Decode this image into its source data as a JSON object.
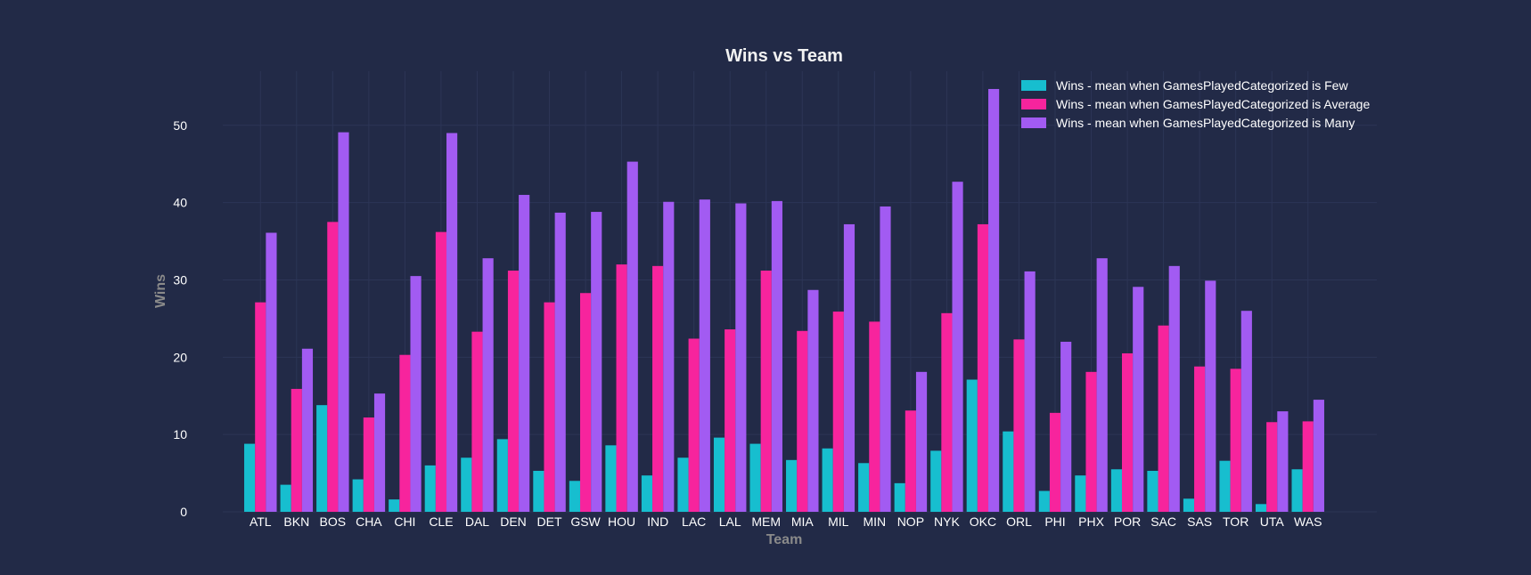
{
  "chart_data": {
    "type": "bar",
    "title": "Wins vs Team",
    "xlabel": "Team",
    "ylabel": "Wins",
    "ylim": [
      0,
      57
    ],
    "yticks": [
      0,
      10,
      20,
      30,
      40,
      50
    ],
    "grid": true,
    "legend_position": "top-right",
    "categories": [
      "ATL",
      "BKN",
      "BOS",
      "CHA",
      "CHI",
      "CLE",
      "DAL",
      "DEN",
      "DET",
      "GSW",
      "HOU",
      "IND",
      "LAC",
      "LAL",
      "MEM",
      "MIA",
      "MIL",
      "MIN",
      "NOP",
      "NYK",
      "OKC",
      "ORL",
      "PHI",
      "PHX",
      "POR",
      "SAC",
      "SAS",
      "TOR",
      "UTA",
      "WAS"
    ],
    "series": [
      {
        "name": "Wins - mean when GamesPlayedCategorized is Few",
        "color": "#17becf",
        "values": [
          8.8,
          3.5,
          13.8,
          4.2,
          1.6,
          6.0,
          7.0,
          9.4,
          5.3,
          4.0,
          8.6,
          4.7,
          7.0,
          9.6,
          8.8,
          6.7,
          8.2,
          6.3,
          3.7,
          7.9,
          17.1,
          10.4,
          2.7,
          4.7,
          5.5,
          5.3,
          1.7,
          6.6,
          1.0,
          5.5
        ]
      },
      {
        "name": "Wins - mean when GamesPlayedCategorized is Average",
        "color": "#f7249d",
        "values": [
          27.1,
          15.9,
          37.5,
          12.2,
          20.3,
          36.2,
          23.3,
          31.2,
          27.1,
          28.3,
          32.0,
          31.8,
          22.4,
          23.6,
          31.2,
          23.4,
          25.9,
          24.6,
          13.1,
          25.7,
          37.2,
          22.3,
          12.8,
          18.1,
          20.5,
          24.1,
          18.8,
          18.5,
          11.6,
          11.7
        ]
      },
      {
        "name": "Wins - mean when GamesPlayedCategorized is Many",
        "color": "#a25bf2",
        "values": [
          36.1,
          21.1,
          49.1,
          15.3,
          30.5,
          49.0,
          32.8,
          41.0,
          38.7,
          38.8,
          45.3,
          40.1,
          40.4,
          39.9,
          40.2,
          28.7,
          37.2,
          39.5,
          18.1,
          42.7,
          54.7,
          31.1,
          22.0,
          32.8,
          29.1,
          31.8,
          29.9,
          26.0,
          13.0,
          14.5
        ]
      }
    ]
  }
}
